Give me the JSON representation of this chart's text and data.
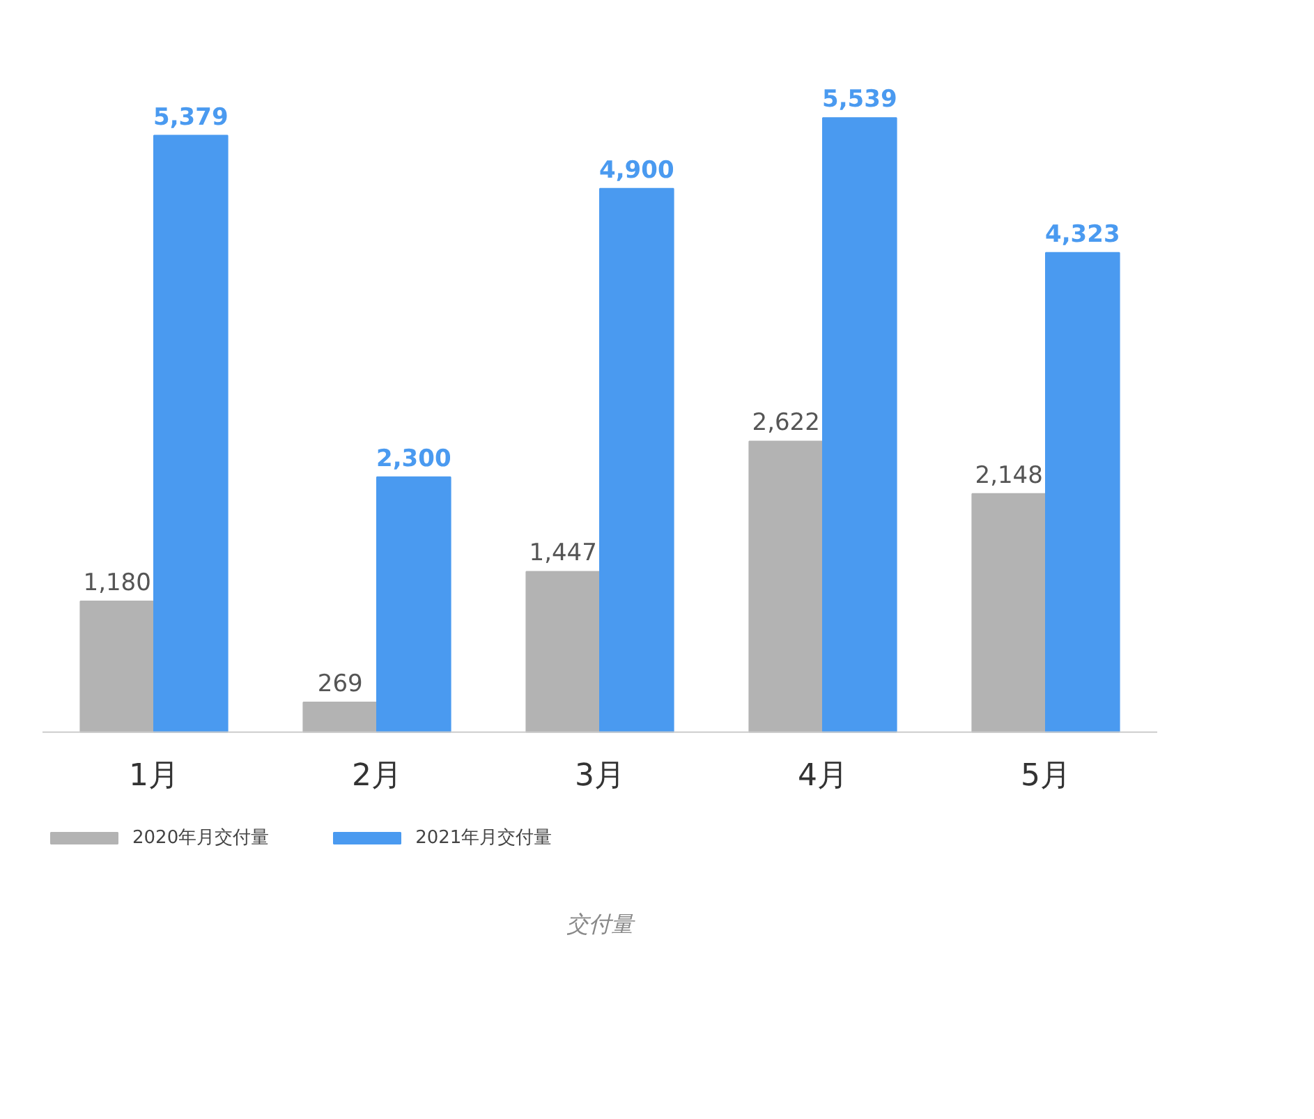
{
  "chart_data": {
    "type": "bar",
    "categories": [
      "1月",
      "2月",
      "3月",
      "4月",
      "5月"
    ],
    "series": [
      {
        "name": "2020年月交付量",
        "color": "#b3b3b3",
        "values": [
          1180,
          269,
          1447,
          2622,
          2148
        ],
        "value_labels": [
          "1,180",
          "269",
          "1,447",
          "2,622",
          "2,148"
        ]
      },
      {
        "name": "2021年月交付量",
        "color": "#4a9af0",
        "values": [
          5379,
          2300,
          4900,
          5539,
          4323
        ],
        "value_labels": [
          "5,379",
          "2,300",
          "4,900",
          "5,539",
          "4,323"
        ]
      }
    ],
    "grid": false,
    "legend": "bottom",
    "annotations": [
      "交付量"
    ]
  }
}
